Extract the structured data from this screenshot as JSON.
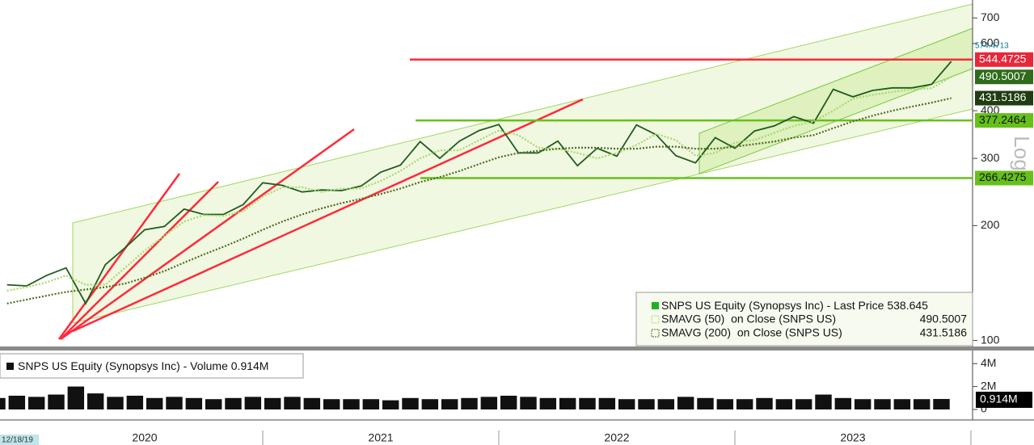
{
  "chart_data": [
    {
      "type": "line",
      "log": true,
      "x": [
        "2019-11",
        "2019-12",
        "2020-01",
        "2020-02",
        "2020-03",
        "2020-04",
        "2020-05",
        "2020-06",
        "2020-07",
        "2020-08",
        "2020-09",
        "2020-10",
        "2020-11",
        "2020-12",
        "2021-01",
        "2021-02",
        "2021-03",
        "2021-04",
        "2021-05",
        "2021-06",
        "2021-07",
        "2021-08",
        "2021-09",
        "2021-10",
        "2021-11",
        "2021-12",
        "2022-01",
        "2022-02",
        "2022-03",
        "2022-04",
        "2022-05",
        "2022-06",
        "2022-07",
        "2022-08",
        "2022-09",
        "2022-10",
        "2022-11",
        "2022-12",
        "2023-01",
        "2023-02",
        "2023-03",
        "2023-04",
        "2023-05",
        "2023-06",
        "2023-07",
        "2023-08",
        "2023-09",
        "2023-10",
        "2023-11"
      ],
      "series": [
        {
          "name": "SNPS US Equity (Synopsys Inc) - Last Price",
          "color": "#1f5c1f",
          "style": "solid",
          "values": [
            140,
            139,
            148,
            155,
            125,
            158,
            175,
            195,
            199,
            221,
            214,
            214,
            227,
            259,
            255,
            245,
            248,
            247,
            254,
            276,
            288,
            332,
            300,
            333,
            355,
            368,
            310,
            310,
            333,
            287,
            319,
            304,
            367,
            346,
            305,
            292,
            340,
            319,
            354,
            365,
            386,
            371,
            455,
            435,
            452,
            459,
            459,
            469,
            538.645
          ]
        },
        {
          "name": "SMAVG (50)  on Close (SNPS US)",
          "color": "#a8d86a",
          "style": "dotted",
          "values": [
            135,
            138,
            142,
            148,
            140,
            140,
            155,
            172,
            188,
            205,
            213,
            212,
            218,
            238,
            252,
            252,
            245,
            250,
            250,
            262,
            278,
            300,
            315,
            315,
            335,
            355,
            345,
            320,
            318,
            310,
            300,
            310,
            325,
            348,
            335,
            305,
            310,
            330,
            335,
            350,
            365,
            375,
            400,
            430,
            440,
            448,
            455,
            458,
            490.5007
          ]
        },
        {
          "name": "SMAVG (200)  on Close (SNPS US)",
          "color": "#4f6b1f",
          "style": "dotted",
          "values": [
            125,
            128,
            131,
            134,
            136,
            138,
            141,
            146,
            152,
            160,
            168,
            176,
            185,
            195,
            205,
            214,
            222,
            229,
            235,
            242,
            250,
            260,
            268,
            278,
            290,
            302,
            310,
            314,
            318,
            320,
            320,
            318,
            318,
            322,
            322,
            318,
            318,
            322,
            327,
            332,
            340,
            345,
            360,
            375,
            388,
            400,
            410,
            420,
            431.5186
          ]
        }
      ],
      "ylim": [
        96,
        780
      ],
      "yticks": [
        100,
        200,
        300,
        400,
        600,
        700
      ],
      "hlines": [
        {
          "value": 544.4725,
          "color": "#ff2a3a"
        },
        {
          "value": 377.2464,
          "color": "#66c01a"
        },
        {
          "value": 266.4275,
          "color": "#66c01a"
        }
      ],
      "high_label": 574.4713,
      "scale_label": "Log",
      "year_labels": [
        "2020",
        "2021",
        "2022",
        "2023"
      ],
      "cursor_label": "12/18/19"
    },
    {
      "type": "bar",
      "name": "SNPS US Equity (Synopsys Inc) - Volume",
      "color": "#111111",
      "values": [
        1.0,
        1.2,
        1.1,
        1.3,
        2.0,
        1.4,
        1.1,
        1.2,
        1.0,
        1.1,
        1.0,
        0.9,
        1.0,
        1.1,
        1.0,
        1.1,
        1.0,
        0.9,
        0.9,
        0.9,
        0.8,
        1.0,
        0.9,
        0.9,
        1.0,
        1.1,
        1.2,
        1.1,
        1.0,
        1.0,
        1.0,
        1.0,
        0.9,
        0.9,
        0.9,
        1.1,
        1.0,
        0.9,
        0.9,
        1.0,
        0.9,
        0.9,
        1.3,
        1.0,
        0.9,
        0.9,
        0.9,
        0.9,
        0.914
      ],
      "last_value_label": "0.914M",
      "ylim": [
        0,
        5
      ],
      "yticks": [
        {
          "value": 4,
          "label": "4M"
        },
        {
          "value": 2,
          "label": "2M"
        },
        0
      ]
    }
  ]
}
